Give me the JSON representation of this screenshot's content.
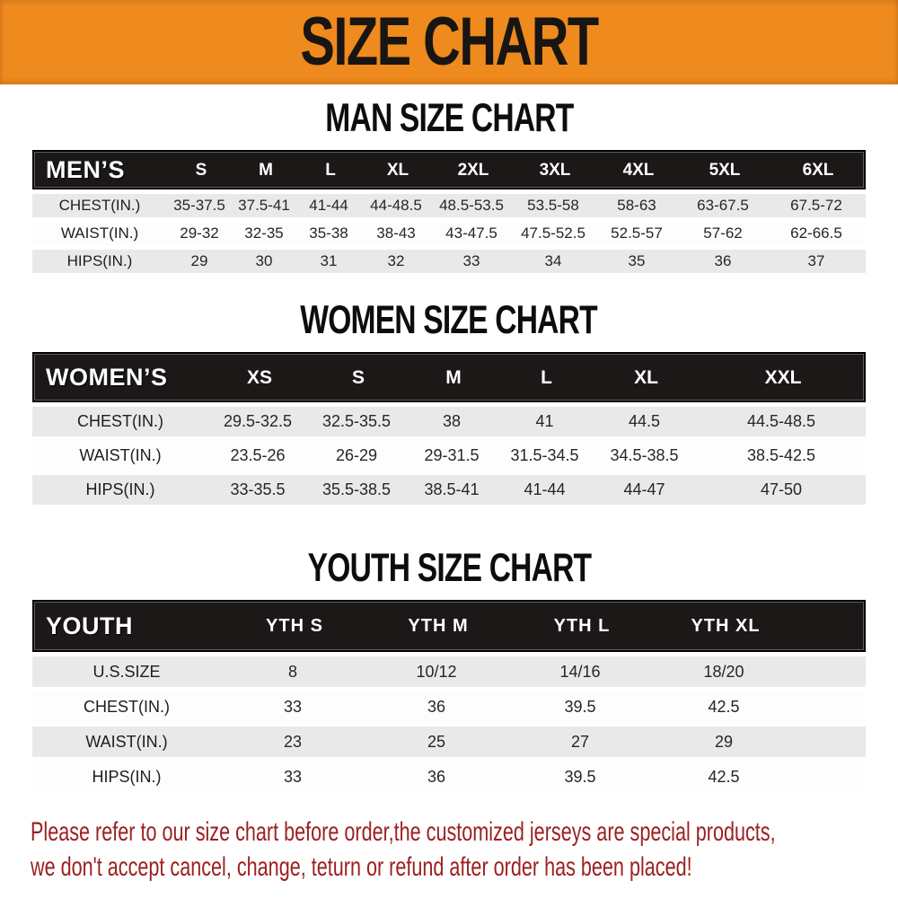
{
  "banner": {
    "title": "SIZE CHART"
  },
  "colors": {
    "banner_bg": "#EE8A1E",
    "header_bar_bg": "#1B1817",
    "row_alt_bg": "#E9E9E9",
    "note_red": "#9C2020"
  },
  "chart_data": [
    {
      "type": "table",
      "title": "MAN SIZE CHART",
      "group_label": "MEN’S",
      "columns": [
        "S",
        "M",
        "L",
        "XL",
        "2XL",
        "3XL",
        "4XL",
        "5XL",
        "6XL"
      ],
      "rows": [
        {
          "label": "CHEST(IN.)",
          "values": [
            "35-37.5",
            "37.5-41",
            "41-44",
            "44-48.5",
            "48.5-53.5",
            "53.5-58",
            "58-63",
            "63-67.5",
            "67.5-72"
          ]
        },
        {
          "label": "WAIST(IN.)",
          "values": [
            "29-32",
            "32-35",
            "35-38",
            "38-43",
            "43-47.5",
            "47.5-52.5",
            "52.5-57",
            "57-62",
            "62-66.5"
          ]
        },
        {
          "label": "HIPS(IN.)",
          "values": [
            "29",
            "30",
            "31",
            "32",
            "33",
            "34",
            "35",
            "36",
            "37"
          ]
        }
      ]
    },
    {
      "type": "table",
      "title": "WOMEN SIZE CHART",
      "group_label": "WOMEN’S",
      "columns": [
        "XS",
        "S",
        "M",
        "L",
        "XL",
        "XXL"
      ],
      "rows": [
        {
          "label": "CHEST(IN.)",
          "values": [
            "29.5-32.5",
            "32.5-35.5",
            "38",
            "41",
            "44.5",
            "44.5-48.5"
          ]
        },
        {
          "label": "WAIST(IN.)",
          "values": [
            "23.5-26",
            "26-29",
            "29-31.5",
            "31.5-34.5",
            "34.5-38.5",
            "38.5-42.5"
          ]
        },
        {
          "label": "HIPS(IN.)",
          "values": [
            "33-35.5",
            "35.5-38.5",
            "38.5-41",
            "41-44",
            "44-47",
            "47-50"
          ]
        }
      ]
    },
    {
      "type": "table",
      "title": "YOUTH SIZE CHART",
      "group_label": "YOUTH",
      "columns": [
        "YTH S",
        "YTH M",
        "YTH L",
        "YTH XL"
      ],
      "rows": [
        {
          "label": "U.S.SIZE",
          "values": [
            "8",
            "10/12",
            "14/16",
            "18/20"
          ]
        },
        {
          "label": "CHEST(IN.)",
          "values": [
            "33",
            "36",
            "39.5",
            "42.5"
          ]
        },
        {
          "label": "WAIST(IN.)",
          "values": [
            "23",
            "25",
            "27",
            "29"
          ]
        },
        {
          "label": "HIPS(IN.)",
          "values": [
            "33",
            "36",
            "39.5",
            "42.5"
          ]
        }
      ]
    }
  ],
  "footer": {
    "line1": "Please refer to our size chart before order,the customized jerseys are special products,",
    "line2": "we don't accept cancel, change, teturn or refund after order has been placed!"
  }
}
